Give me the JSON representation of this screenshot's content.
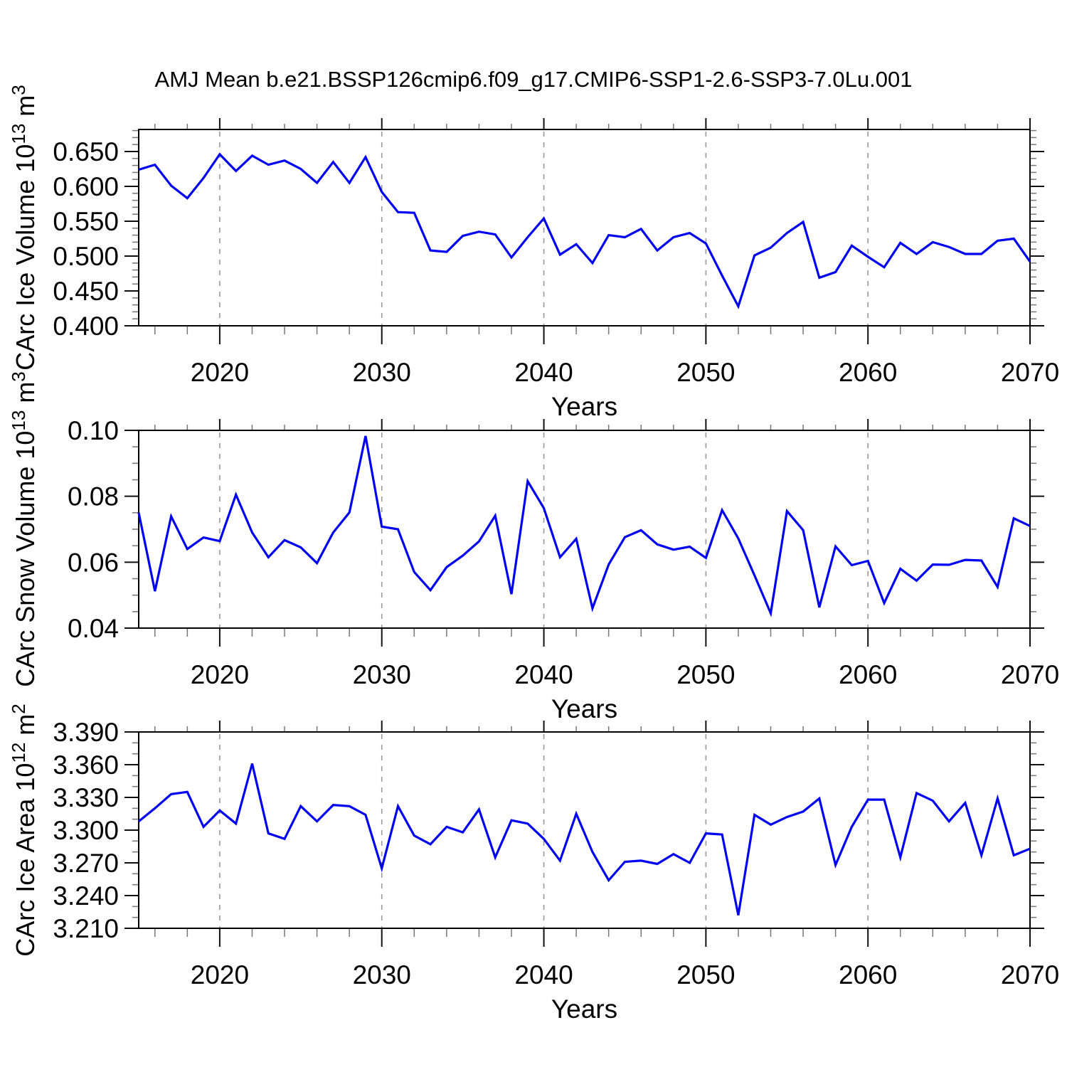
{
  "title": "AMJ Mean b.e21.BSSP126cmip6.f09_g17.CMIP6-SSP1-2.6-SSP3-7.0Lu.001",
  "colors": {
    "line": "#0000f2",
    "grid": "#999999",
    "frame": "#000000",
    "tick_major": "#111111",
    "tick_minor": "#777777",
    "text": "#000000",
    "background": "#ffffff"
  },
  "axis_x": {
    "xlabel": "Years",
    "tick_years": [
      2020,
      2030,
      2040,
      2050,
      2060,
      2070
    ],
    "tick_labels": [
      "2020",
      "2030",
      "2040",
      "2050",
      "2060",
      "2070"
    ],
    "minor_step": 2,
    "grid_years": [
      2020,
      2030,
      2040,
      2050,
      2060
    ],
    "range": [
      2015,
      2070
    ]
  },
  "chart_data": [
    {
      "type": "line",
      "panel": "ice-volume",
      "xlabel": "Years",
      "ylabel_plain": "CArc Ice Volume 10^13 m^3",
      "ylabel": {
        "base": "CArc Ice Volume 10",
        "exp": "13",
        "unit": " m",
        "unit_exp": "3"
      },
      "x_start": 2015,
      "x_end": 2070,
      "ylim": [
        0.4,
        0.6816
      ],
      "y_minor_step": 0.01,
      "yticks": [
        {
          "v": 0.4,
          "label": "0.400"
        },
        {
          "v": 0.45,
          "label": "0.450"
        },
        {
          "v": 0.5,
          "label": "0.500"
        },
        {
          "v": 0.55,
          "label": "0.550"
        },
        {
          "v": 0.6,
          "label": "0.600"
        },
        {
          "v": 0.65,
          "label": "0.650"
        }
      ],
      "values": [
        0.624,
        0.631,
        0.601,
        0.583,
        0.612,
        0.646,
        0.622,
        0.644,
        0.631,
        0.637,
        0.625,
        0.605,
        0.635,
        0.605,
        0.642,
        0.592,
        0.563,
        0.562,
        0.508,
        0.506,
        0.529,
        0.535,
        0.531,
        0.498,
        0.527,
        0.554,
        0.502,
        0.517,
        0.49,
        0.53,
        0.527,
        0.539,
        0.508,
        0.527,
        0.533,
        0.518,
        0.472,
        0.428,
        0.501,
        0.512,
        0.533,
        0.549,
        0.469,
        0.477,
        0.515,
        0.499,
        0.484,
        0.519,
        0.503,
        0.52,
        0.513,
        0.503,
        0.503,
        0.522,
        0.525,
        0.492
      ]
    },
    {
      "type": "line",
      "panel": "snow-volume",
      "xlabel": "Years",
      "ylabel_plain": "CArc Snow Volume 10^13 m^3",
      "ylabel": {
        "base": "CArc Snow Volume 10",
        "exp": "13",
        "unit": " m",
        "unit_exp": "3"
      },
      "x_start": 2015,
      "x_end": 2070,
      "ylim": [
        0.04,
        0.1
      ],
      "y_minor_step": 0.005,
      "yticks": [
        {
          "v": 0.04,
          "label": "0.04"
        },
        {
          "v": 0.06,
          "label": "0.06"
        },
        {
          "v": 0.08,
          "label": "0.08"
        },
        {
          "v": 0.1,
          "label": "0.10"
        }
      ],
      "values": [
        0.075,
        0.0512,
        0.0739,
        0.064,
        0.0675,
        0.0664,
        0.0805,
        0.069,
        0.0615,
        0.0667,
        0.0645,
        0.0597,
        0.069,
        0.0751,
        0.0983,
        0.0708,
        0.07,
        0.057,
        0.0515,
        0.0585,
        0.062,
        0.0663,
        0.0741,
        0.0503,
        0.0846,
        0.0764,
        0.0615,
        0.0671,
        0.046,
        0.0593,
        0.0676,
        0.0697,
        0.0654,
        0.0638,
        0.0647,
        0.0613,
        0.0758,
        0.0672,
        0.056,
        0.0445,
        0.0755,
        0.0697,
        0.0463,
        0.0648,
        0.0591,
        0.0604,
        0.0476,
        0.058,
        0.0544,
        0.0593,
        0.0592,
        0.0607,
        0.0605,
        0.0525,
        0.0733,
        0.071
      ]
    },
    {
      "type": "line",
      "panel": "ice-area",
      "xlabel": "Years",
      "ylabel_plain": "CArc Ice Area 10^12 m^2",
      "ylabel": {
        "base": "CArc Ice Area 10",
        "exp": "12",
        "unit": " m",
        "unit_exp": "2"
      },
      "x_start": 2015,
      "x_end": 2070,
      "ylim": [
        3.21,
        3.39
      ],
      "y_minor_step": 0.01,
      "yticks": [
        {
          "v": 3.21,
          "label": "3.210"
        },
        {
          "v": 3.24,
          "label": "3.240"
        },
        {
          "v": 3.27,
          "label": "3.270"
        },
        {
          "v": 3.3,
          "label": "3.300"
        },
        {
          "v": 3.33,
          "label": "3.330"
        },
        {
          "v": 3.36,
          "label": "3.360"
        },
        {
          "v": 3.39,
          "label": "3.390"
        }
      ],
      "values": [
        3.308,
        3.32,
        3.333,
        3.335,
        3.303,
        3.318,
        3.306,
        3.361,
        3.297,
        3.292,
        3.322,
        3.308,
        3.323,
        3.322,
        3.314,
        3.265,
        3.322,
        3.295,
        3.287,
        3.303,
        3.298,
        3.319,
        3.275,
        3.309,
        3.306,
        3.292,
        3.272,
        3.315,
        3.28,
        3.254,
        3.271,
        3.272,
        3.269,
        3.278,
        3.27,
        3.297,
        3.296,
        3.222,
        3.314,
        3.305,
        3.312,
        3.317,
        3.329,
        3.268,
        3.303,
        3.328,
        3.328,
        3.275,
        3.334,
        3.327,
        3.308,
        3.325,
        3.277,
        3.329,
        3.277,
        3.283
      ]
    }
  ]
}
